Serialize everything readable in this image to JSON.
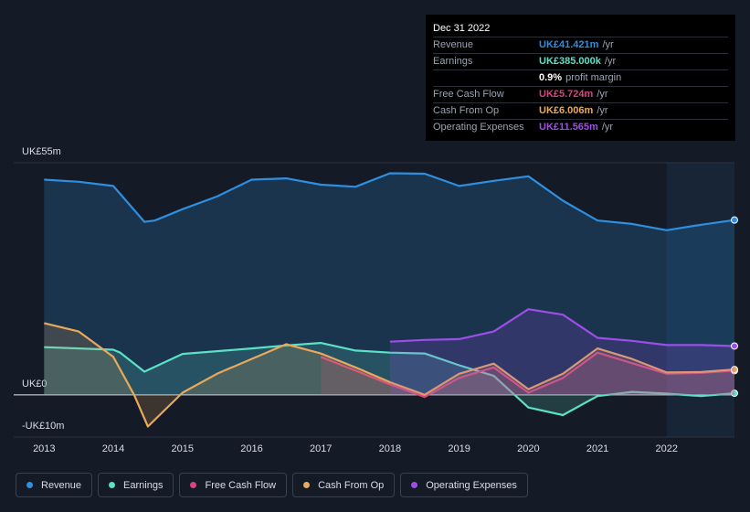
{
  "chart_data": {
    "type": "area-line",
    "xlim": [
      2012.56,
      2022.98
    ],
    "xticks": [
      2013,
      2014,
      2015,
      2016,
      2017,
      2018,
      2019,
      2020,
      2021,
      2022
    ],
    "ylim": [
      -10,
      55
    ],
    "yticks": [
      {
        "value": 55,
        "label": "UK£55m"
      },
      {
        "value": 0,
        "label": "UK£0"
      },
      {
        "value": -10,
        "label": "-UK£10m"
      }
    ],
    "grid": true,
    "series": [
      {
        "name": "Revenue",
        "color": "#2e8fe0",
        "x": [
          2013.0,
          2013.5,
          2014.0,
          2014.45,
          2014.6,
          2015.0,
          2015.5,
          2016.0,
          2016.5,
          2017.0,
          2017.5,
          2018.0,
          2018.5,
          2019.0,
          2019.5,
          2020.0,
          2020.5,
          2021.0,
          2021.5,
          2022.0,
          2022.5,
          2022.98
        ],
        "values": [
          51,
          50.5,
          49.5,
          41,
          41.3,
          44,
          47,
          51,
          51.3,
          49.8,
          49.3,
          52.5,
          52.4,
          49.5,
          50.7,
          51.8,
          46,
          41.3,
          40.5,
          39,
          40.3,
          41.421
        ]
      },
      {
        "name": "Earnings",
        "color": "#5ce0c6",
        "x": [
          2013.0,
          2014.0,
          2014.1,
          2014.45,
          2015.0,
          2016.0,
          2016.5,
          2017.0,
          2017.5,
          2018.0,
          2018.5,
          2019.0,
          2019.5,
          2020.0,
          2020.5,
          2021.0,
          2021.5,
          2022.0,
          2022.5,
          2022.98
        ],
        "values": [
          11.3,
          10.7,
          10,
          5.5,
          9.7,
          11,
          11.7,
          12.3,
          10.5,
          10,
          9.8,
          7,
          4.5,
          -3,
          -4.8,
          -0.3,
          0.7,
          0.3,
          -0.3,
          0.385
        ]
      },
      {
        "name": "Free Cash Flow",
        "color": "#d6467e",
        "x": [
          2017.0,
          2018.0,
          2018.5,
          2019.0,
          2019.5,
          2020.0,
          2020.5,
          2021.0,
          2021.5,
          2022.0,
          2022.5,
          2022.98
        ],
        "values": [
          9,
          2.5,
          -0.5,
          4,
          6.5,
          0.5,
          4,
          10,
          7.5,
          5,
          5.2,
          5.724
        ]
      },
      {
        "name": "Cash From Op",
        "color": "#e8a95b",
        "x": [
          2013.0,
          2013.5,
          2014.0,
          2014.3,
          2014.5,
          2015.0,
          2015.5,
          2016.0,
          2016.5,
          2017.0,
          2017.5,
          2018.0,
          2018.5,
          2019.0,
          2019.5,
          2020.0,
          2020.5,
          2021.0,
          2021.5,
          2022.0,
          2022.5,
          2022.98
        ],
        "values": [
          17,
          15,
          9,
          0,
          -7.5,
          0.5,
          5,
          8.5,
          12,
          9.8,
          6.5,
          3,
          0,
          5,
          7.4,
          1.3,
          5,
          11,
          8.5,
          5.3,
          5.4,
          6.006
        ]
      },
      {
        "name": "Operating Expenses",
        "color": "#9d4ee8",
        "x": [
          2018.0,
          2018.5,
          2019.0,
          2019.5,
          2020.0,
          2020.5,
          2021.0,
          2021.5,
          2022.0,
          2022.5,
          2022.98
        ],
        "values": [
          12.6,
          13,
          13.2,
          15,
          20.3,
          19,
          13.5,
          12.8,
          11.8,
          11.8,
          11.565
        ]
      }
    ],
    "tooltip": {
      "title": "Dec 31 2022",
      "rows": [
        {
          "label": "Revenue",
          "value": "UK£41.421m",
          "unit": "/yr",
          "color": "#2e8fe0"
        },
        {
          "label": "Earnings",
          "value": "UK£385.000k",
          "unit": "/yr",
          "color": "#5ce0c6"
        },
        {
          "value": "0.9%",
          "unit": "profit margin",
          "color": "#ffffff"
        },
        {
          "label": "Free Cash Flow",
          "value": "UK£5.724m",
          "unit": "/yr",
          "color": "#d6467e"
        },
        {
          "label": "Cash From Op",
          "value": "UK£6.006m",
          "unit": "/yr",
          "color": "#e8a95b"
        },
        {
          "label": "Operating Expenses",
          "value": "UK£11.565m",
          "unit": "/yr",
          "color": "#9d4ee8"
        }
      ]
    }
  }
}
